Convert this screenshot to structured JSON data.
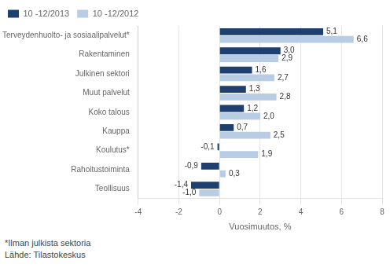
{
  "chart_data": {
    "type": "bar",
    "orientation": "horizontal",
    "categories": [
      "Terveydenhuolto- ja sosiaalipalvelut*",
      "Rakentaminen",
      "Julkinen sektori",
      "Muut palvelut",
      "Koko talous",
      "Kauppa",
      "Koulutus*",
      "Rahoitustoiminta",
      "Teollisuus"
    ],
    "series": [
      {
        "name": "10 -12/2013",
        "color": "#1F3F6E",
        "values": [
          5.1,
          3.0,
          1.6,
          1.3,
          1.2,
          0.7,
          -0.1,
          -0.9,
          -1.4
        ],
        "value_labels": [
          "5,1",
          "3,0",
          "1,6",
          "1,3",
          "1,2",
          "0,7",
          "-0,1",
          "-0,9",
          "-1,4"
        ]
      },
      {
        "name": "10 -12/2012",
        "color": "#B8CCE4",
        "values": [
          6.6,
          2.9,
          2.7,
          2.8,
          2.0,
          2.5,
          1.9,
          0.3,
          -1.0
        ],
        "value_labels": [
          "6,6",
          "2,9",
          "2,7",
          "2,8",
          "2,0",
          "2,5",
          "1,9",
          "0,3",
          "-1,0"
        ]
      }
    ],
    "xlabel": "Vuosimuutos, %",
    "xlim": [
      -4,
      8
    ],
    "xticks": [
      -4,
      -2,
      0,
      2,
      4,
      6,
      8
    ],
    "grid": true,
    "legend": "upper left",
    "data_labels": true,
    "annotations": [
      "*Ilman julkista sektoria",
      "Lähde: Tilastokeskus"
    ]
  }
}
